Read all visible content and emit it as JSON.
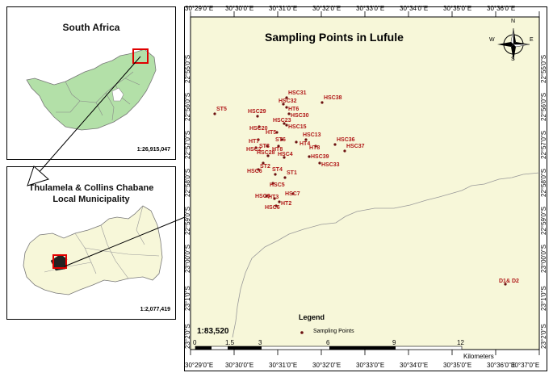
{
  "inset_top": {
    "title": "South Africa",
    "scale": "1:26,915,047"
  },
  "inset_bottom": {
    "title_line1": "Thulamela & Collins Chabane",
    "title_line2": "Local Municipality",
    "scale": "1:2,077,419"
  },
  "main_map": {
    "title": "Sampling Points in Lufule",
    "scale_ratio": "1:83,520",
    "legend_title": "Legend",
    "legend_item": "Sampling Points",
    "scalebar_labels": [
      "0",
      "1.5",
      "3",
      "6",
      "9",
      "12"
    ],
    "scalebar_unit": "Kilometers",
    "lon_labels": [
      "30°29'0\"E",
      "30°30'0\"E",
      "30°31'0\"E",
      "30°32'0\"E",
      "30°33'0\"E",
      "30°34'0\"E",
      "30°35'0\"E",
      "30°36'0\"E",
      "30°37'0\"E"
    ],
    "lat_labels": [
      "22°55'0\"S",
      "22°56'0\"S",
      "22°57'0\"S",
      "22°58'0\"S",
      "22°59'0\"S",
      "23°00'0\"S",
      "23°1'0\"S",
      "23°2'0\"S"
    ],
    "compass": {
      "n": "N",
      "s": "S",
      "e": "E",
      "w": "W"
    },
    "points": [
      {
        "label": "HSC31"
      },
      {
        "label": "HSC32"
      },
      {
        "label": "HT6"
      },
      {
        "label": "HSC38"
      },
      {
        "label": "HSC30"
      },
      {
        "label": "HSC29"
      },
      {
        "label": "ST5"
      },
      {
        "label": "HSC23"
      },
      {
        "label": "HSC20"
      },
      {
        "label": "HSC15"
      },
      {
        "label": "HT5"
      },
      {
        "label": "HSC13"
      },
      {
        "label": "HT7"
      },
      {
        "label": "ST6"
      },
      {
        "label": "HT4"
      },
      {
        "label": "HSC36"
      },
      {
        "label": "HSC2"
      },
      {
        "label": "ST3"
      },
      {
        "label": "HT8"
      },
      {
        "label": "HT8"
      },
      {
        "label": "HSC37"
      },
      {
        "label": "HSC28"
      },
      {
        "label": "HSC4"
      },
      {
        "label": "HSC39"
      },
      {
        "label": "HSC33"
      },
      {
        "label": "ST2"
      },
      {
        "label": "HSC6"
      },
      {
        "label": "ST4"
      },
      {
        "label": "ST1"
      },
      {
        "label": "HSC5"
      },
      {
        "label": "HSC7"
      },
      {
        "label": "HSC9"
      },
      {
        "label": "HT3"
      },
      {
        "label": "HT2"
      },
      {
        "label": "HSC6"
      },
      {
        "label": "D1& D2"
      }
    ]
  },
  "colors": {
    "land": "#f7f7d9",
    "africa_fill": "#b3e0a8",
    "point": "#6b1010",
    "label": "#b01818",
    "highlight": "#e00000"
  }
}
